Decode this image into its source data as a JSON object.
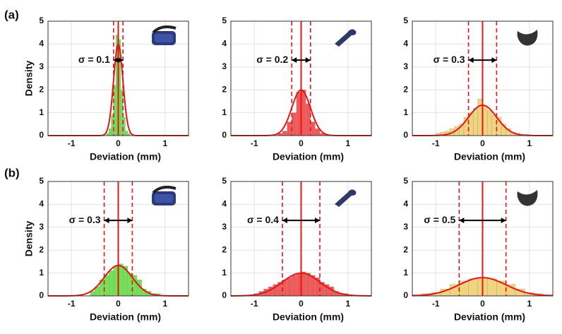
{
  "panel_labels": [
    "(a)",
    "(b)"
  ],
  "chart_data": [
    {
      "type": "histogram",
      "color": "#66dd44",
      "curve_color": "#e01818",
      "xlim": [
        -1.5,
        1.5
      ],
      "ylim": [
        0,
        5
      ],
      "xticks": [
        -1,
        0,
        1
      ],
      "yticks": [
        0,
        1,
        2,
        3,
        4,
        5
      ],
      "grid": true,
      "xlabel": "Deviation (mm)",
      "ylabel": "Density",
      "bins": [
        -0.25,
        -0.2,
        -0.15,
        -0.1,
        -0.05,
        0,
        0.05,
        0.1,
        0.15,
        0.2,
        0.25
      ],
      "values": [
        0.1,
        0.3,
        0.9,
        2.2,
        4.4,
        4.2,
        2.0,
        0.8,
        0.2,
        0.1
      ],
      "fit": {
        "mean": 0,
        "sigma": 0.1,
        "label": "σ = 0.1"
      }
    },
    {
      "type": "histogram",
      "color": "#f04848",
      "curve_color": "#e01818",
      "xlim": [
        -1.5,
        1.5
      ],
      "ylim": [
        0,
        5
      ],
      "xticks": [
        -1,
        0,
        1
      ],
      "yticks": [
        0,
        1,
        2,
        3,
        4,
        5
      ],
      "grid": true,
      "xlabel": "Deviation (mm)",
      "bins": [
        -0.5,
        -0.4,
        -0.3,
        -0.2,
        -0.1,
        0,
        0.1,
        0.2,
        0.3,
        0.4,
        0.5,
        0.6
      ],
      "values": [
        0.1,
        0.2,
        0.6,
        1.0,
        1.9,
        2.0,
        1.4,
        0.6,
        0.3,
        0.1,
        0.05
      ],
      "fit": {
        "mean": 0,
        "sigma": 0.2,
        "label": "σ = 0.2"
      }
    },
    {
      "type": "histogram",
      "color": "#f0d070",
      "curve_color": "#e01818",
      "xlim": [
        -1.5,
        1.5
      ],
      "ylim": [
        0,
        5
      ],
      "xticks": [
        -1,
        0,
        1
      ],
      "yticks": [
        0,
        1,
        2,
        3,
        4,
        5
      ],
      "grid": true,
      "xlabel": "Deviation (mm)",
      "bins": [
        -1,
        -0.9,
        -0.8,
        -0.7,
        -0.6,
        -0.5,
        -0.4,
        -0.3,
        -0.2,
        -0.1,
        0,
        0.1,
        0.2,
        0.3,
        0.4,
        0.5,
        0.6,
        0.7,
        0.8,
        0.9,
        1
      ],
      "values": [
        0.1,
        0.15,
        0.2,
        0.3,
        0.4,
        0.5,
        0.8,
        1.0,
        1.2,
        1.6,
        1.3,
        1.1,
        0.9,
        0.8,
        0.5,
        0.3,
        0.15,
        0.1,
        0.05,
        0.05
      ],
      "fit": {
        "mean": 0,
        "sigma": 0.3,
        "label": "σ = 0.3"
      }
    },
    {
      "type": "histogram",
      "color": "#66dd44",
      "curve_color": "#e01818",
      "xlim": [
        -1.5,
        1.5
      ],
      "ylim": [
        0,
        5
      ],
      "xticks": [
        -1,
        0,
        1
      ],
      "yticks": [
        0,
        1,
        2,
        3,
        4,
        5
      ],
      "grid": true,
      "xlabel": "Deviation (mm)",
      "ylabel": "Density",
      "bins": [
        -0.6,
        -0.5,
        -0.4,
        -0.3,
        -0.2,
        -0.1,
        0,
        0.1,
        0.2,
        0.3,
        0.4,
        0.5,
        0.6,
        0.7,
        0.8,
        0.9
      ],
      "values": [
        0.2,
        0.4,
        0.7,
        0.9,
        1.1,
        1.3,
        1.4,
        1.3,
        1.0,
        0.9,
        0.7,
        0.3,
        0.2,
        0.1,
        0.1
      ],
      "fit": {
        "mean": 0,
        "sigma": 0.3,
        "label": "σ = 0.3"
      }
    },
    {
      "type": "histogram",
      "color": "#f04848",
      "curve_color": "#e01818",
      "xlim": [
        -1.5,
        1.5
      ],
      "ylim": [
        0,
        5
      ],
      "xticks": [
        -1,
        0,
        1
      ],
      "yticks": [
        0,
        1,
        2,
        3,
        4,
        5
      ],
      "grid": true,
      "xlabel": "Deviation (mm)",
      "bins": [
        -1.1,
        -1,
        -0.9,
        -0.8,
        -0.7,
        -0.6,
        -0.5,
        -0.4,
        -0.3,
        -0.2,
        -0.1,
        0,
        0.1,
        0.2,
        0.3,
        0.4,
        0.5,
        0.6,
        0.7,
        0.8,
        0.9,
        1,
        1.1
      ],
      "values": [
        0.05,
        0.1,
        0.2,
        0.3,
        0.4,
        0.5,
        0.6,
        0.7,
        0.8,
        0.9,
        1.0,
        1.05,
        1.0,
        0.9,
        0.8,
        0.6,
        0.5,
        0.4,
        0.2,
        0.1,
        0.1,
        0.05
      ],
      "fit": {
        "mean": 0,
        "sigma": 0.4,
        "label": "σ = 0.4"
      }
    },
    {
      "type": "histogram",
      "color": "#f0d070",
      "curve_color": "#e01818",
      "xlim": [
        -1.5,
        1.5
      ],
      "ylim": [
        0,
        5
      ],
      "xticks": [
        -1,
        0,
        1
      ],
      "yticks": [
        0,
        1,
        2,
        3,
        4,
        5
      ],
      "grid": true,
      "xlabel": "Deviation (mm)",
      "bins": [
        -1.5,
        -1.3,
        -1.1,
        -0.9,
        -0.7,
        -0.5,
        -0.3,
        -0.1,
        0.1,
        0.3,
        0.5,
        0.7,
        0.9,
        1.1,
        1.3,
        1.5
      ],
      "values": [
        0.05,
        0.1,
        0.15,
        0.3,
        0.5,
        0.65,
        0.75,
        0.8,
        0.75,
        0.65,
        0.5,
        0.3,
        0.15,
        0.1,
        0.05
      ],
      "fit": {
        "mean": 0,
        "sigma": 0.5,
        "label": "σ = 0.5"
      }
    }
  ]
}
